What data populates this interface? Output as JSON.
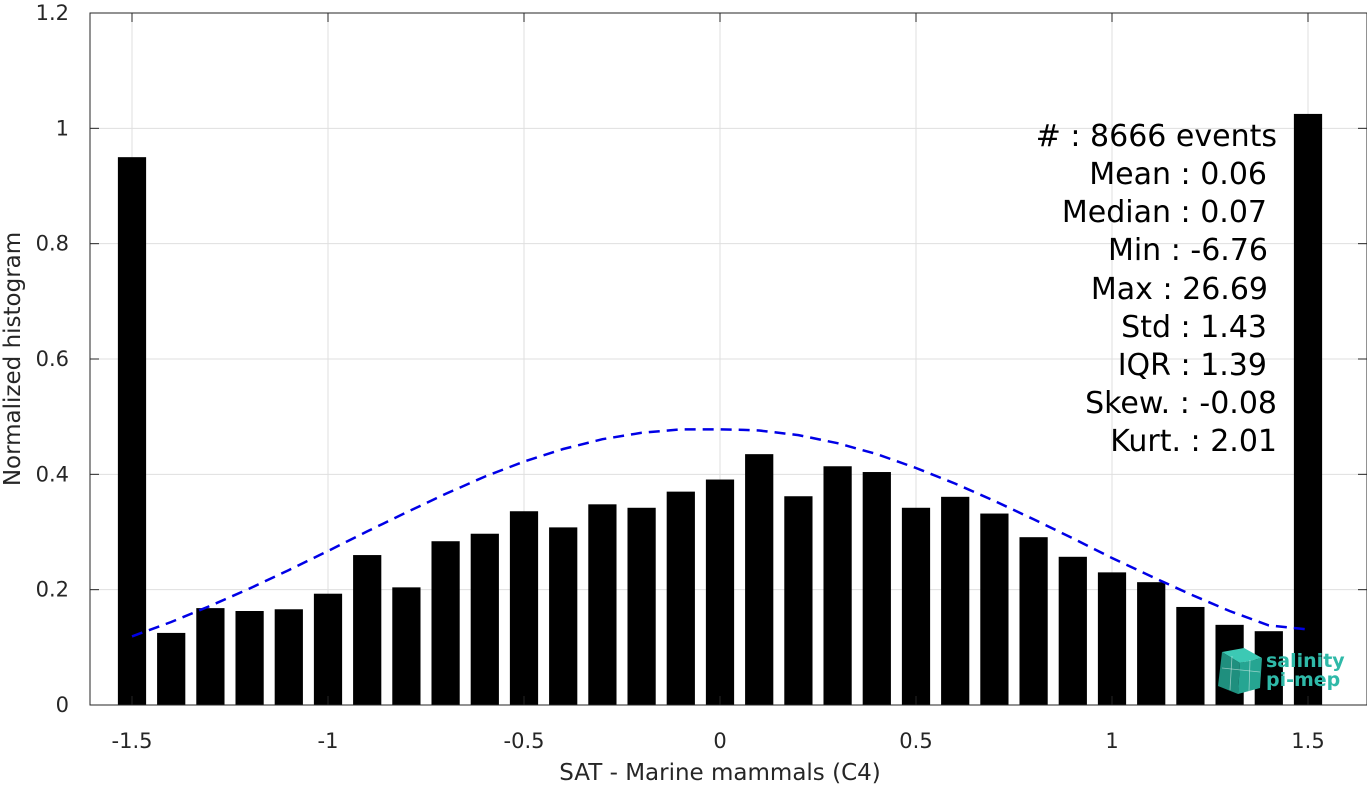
{
  "chart_data": {
    "type": "bar",
    "xlabel": "SAT - Marine mammals (C4)",
    "ylabel": "Normalized histogram",
    "xlim": [
      -1.55,
      1.55
    ],
    "ylim": [
      0,
      1.2
    ],
    "grid": true,
    "xticks": [
      -1.5,
      -1,
      -0.5,
      0,
      0.5,
      1,
      1.5
    ],
    "xtick_labels": [
      "-1.5",
      "-1",
      "-0.5",
      "0",
      "0.5",
      "1",
      "1.5"
    ],
    "yticks": [
      0,
      0.2,
      0.4,
      0.6,
      0.8,
      1,
      1.2
    ],
    "ytick_labels": [
      "0",
      "0.2",
      "0.4",
      "0.6",
      "0.8",
      "1",
      "1.2"
    ],
    "bar_color": "#000000",
    "bin_width": 0.1,
    "bins": [
      {
        "x": -1.5,
        "value": 0.95
      },
      {
        "x": -1.4,
        "value": 0.125
      },
      {
        "x": -1.3,
        "value": 0.168
      },
      {
        "x": -1.2,
        "value": 0.163
      },
      {
        "x": -1.1,
        "value": 0.166
      },
      {
        "x": -1.0,
        "value": 0.193
      },
      {
        "x": -0.9,
        "value": 0.26
      },
      {
        "x": -0.8,
        "value": 0.204
      },
      {
        "x": -0.7,
        "value": 0.284
      },
      {
        "x": -0.6,
        "value": 0.297
      },
      {
        "x": -0.5,
        "value": 0.336
      },
      {
        "x": -0.4,
        "value": 0.308
      },
      {
        "x": -0.3,
        "value": 0.348
      },
      {
        "x": -0.2,
        "value": 0.342
      },
      {
        "x": -0.1,
        "value": 0.37
      },
      {
        "x": 0.0,
        "value": 0.391
      },
      {
        "x": 0.1,
        "value": 0.435
      },
      {
        "x": 0.2,
        "value": 0.362
      },
      {
        "x": 0.3,
        "value": 0.414
      },
      {
        "x": 0.4,
        "value": 0.404
      },
      {
        "x": 0.5,
        "value": 0.342
      },
      {
        "x": 0.6,
        "value": 0.361
      },
      {
        "x": 0.7,
        "value": 0.332
      },
      {
        "x": 0.8,
        "value": 0.291
      },
      {
        "x": 0.9,
        "value": 0.257
      },
      {
        "x": 1.0,
        "value": 0.23
      },
      {
        "x": 1.1,
        "value": 0.213
      },
      {
        "x": 1.2,
        "value": 0.17
      },
      {
        "x": 1.3,
        "value": 0.139
      },
      {
        "x": 1.4,
        "value": 0.128
      },
      {
        "x": 1.5,
        "value": 1.025
      }
    ],
    "fit_curve": {
      "style": "dashed",
      "color": "#0000e6",
      "x": [
        -1.5,
        -1.4,
        -1.3,
        -1.2,
        -1.1,
        -1.0,
        -0.9,
        -0.8,
        -0.7,
        -0.6,
        -0.5,
        -0.4,
        -0.3,
        -0.2,
        -0.1,
        0.0,
        0.06,
        0.1,
        0.2,
        0.3,
        0.4,
        0.5,
        0.6,
        0.7,
        0.8,
        0.9,
        1.0,
        1.1,
        1.2,
        1.3,
        1.4,
        1.5
      ],
      "y": [
        0.119,
        0.144,
        0.172,
        0.202,
        0.234,
        0.267,
        0.301,
        0.334,
        0.366,
        0.396,
        0.422,
        0.444,
        0.461,
        0.472,
        0.478,
        0.478,
        0.477,
        0.476,
        0.468,
        0.454,
        0.435,
        0.411,
        0.384,
        0.354,
        0.322,
        0.289,
        0.255,
        0.223,
        0.192,
        0.163,
        0.138,
        0.131
      ]
    },
    "annotations": [
      "#  : 8666 events",
      "Mean : 0.06",
      "Median : 0.07",
      "Min : -6.76",
      "Max : 26.69",
      "Std : 1.43",
      "IQR : 1.39",
      "Skew. : -0.08",
      "Kurt. : 2.01"
    ]
  },
  "logo": {
    "line1": "salinity",
    "line2": "pi-mep",
    "color": "#2fb9a8"
  }
}
